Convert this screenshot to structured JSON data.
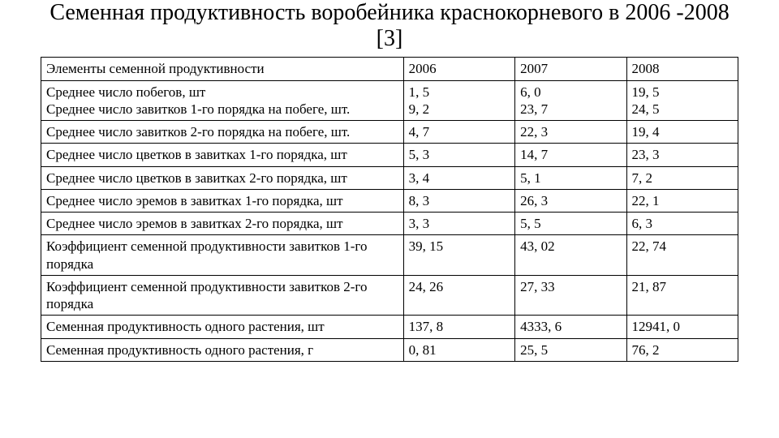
{
  "title": "Семенная продуктивность воробейника краснокорневого в 2006 -2008 [3]",
  "table": {
    "type": "table",
    "background_color": "#ffffff",
    "border_color": "#000000",
    "text_color": "#000000",
    "font_family": "Times New Roman",
    "title_fontsize": 28,
    "cell_fontsize": 17,
    "columns": [
      {
        "label": "Элементы семенной продуктивности",
        "width_pct": 52,
        "align": "left"
      },
      {
        "label": "2006",
        "width_pct": 16,
        "align": "left"
      },
      {
        "label": "2007",
        "width_pct": 16,
        "align": "left"
      },
      {
        "label": "2008",
        "width_pct": 16,
        "align": "left"
      }
    ],
    "rows": [
      {
        "label_lines": [
          "Среднее число побегов, шт",
          "Среднее число завитков 1-го порядка на побеге, шт."
        ],
        "y2006_lines": [
          "1, 5",
          "9, 2"
        ],
        "y2007_lines": [
          "6, 0",
          "23, 7"
        ],
        "y2008_lines": [
          "19, 5",
          "24, 5"
        ]
      },
      {
        "label": "Среднее число завитков 2-го порядка на побеге, шт.",
        "y2006": "4, 7",
        "y2007": "22, 3",
        "y2008": "19, 4"
      },
      {
        "label": "Среднее число цветков в завитках 1-го порядка, шт",
        "y2006": "5, 3",
        "y2007": "14, 7",
        "y2008": "23, 3"
      },
      {
        "label": "Среднее число цветков в завитках 2-го порядка, шт",
        "y2006": "3, 4",
        "y2007": "5, 1",
        "y2008": "7, 2"
      },
      {
        "label": "Среднее число эремов в завитках 1-го порядка, шт",
        "y2006": "8, 3",
        "y2007": "26, 3",
        "y2008": "22, 1"
      },
      {
        "label": "Среднее число эремов в завитках 2-го порядка, шт",
        "y2006": "3, 3",
        "y2007": "5, 5",
        "y2008": "6, 3"
      },
      {
        "label": "Коэффициент семенной продуктивности завитков 1-го порядка",
        "y2006": "39, 15",
        "y2007": "43, 02",
        "y2008": "22, 74"
      },
      {
        "label": "Коэффициент семенной продуктивности завитков 2-го порядка",
        "y2006": "24, 26",
        "y2007": "27, 33",
        "y2008": "21, 87"
      },
      {
        "label": "Семенная продуктивность одного растения, шт",
        "y2006": "137, 8",
        "y2007": "4333, 6",
        "y2008": "12941, 0"
      },
      {
        "label": "Семенная продуктивность одного растения, г",
        "y2006": "0, 81",
        "y2007": "25, 5",
        "y2008": "76, 2"
      }
    ]
  }
}
